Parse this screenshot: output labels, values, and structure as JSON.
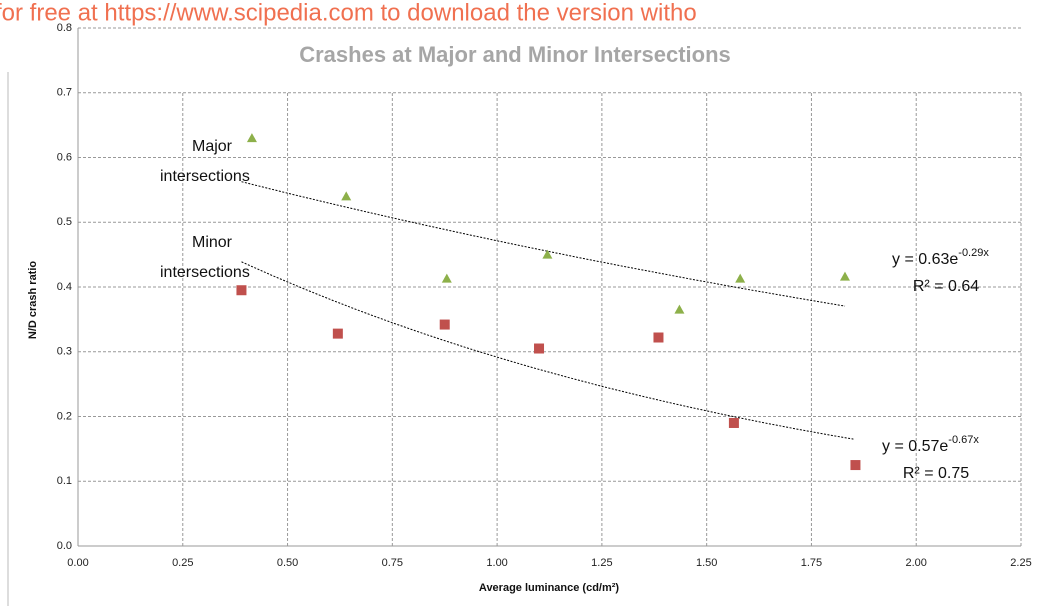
{
  "watermark": "for free at https://www.scipedia.com to download the version witho",
  "chart_data": {
    "type": "scatter",
    "title": "Crashes at Major and Minor Intersections",
    "x_label": "Average luminance (cd/m²)",
    "y_label": "N/D crash ratio",
    "xlim": [
      0,
      2.25
    ],
    "ylim": [
      0,
      0.8
    ],
    "xticks": [
      {
        "value": 0,
        "label": "0.00"
      },
      {
        "value": 0.25,
        "label": "0.25"
      },
      {
        "value": 0.5,
        "label": "0.50"
      },
      {
        "value": 0.75,
        "label": "0.75"
      },
      {
        "value": 1,
        "label": "1.00"
      },
      {
        "value": 1.25,
        "label": "1.25"
      },
      {
        "value": 1.5,
        "label": "1.50"
      },
      {
        "value": 1.75,
        "label": "1.75"
      },
      {
        "value": 2,
        "label": "2.00"
      },
      {
        "value": 2.25,
        "label": "2.25"
      }
    ],
    "yticks": [
      {
        "value": 0,
        "label": "0.0"
      },
      0.1,
      0.2,
      0.3,
      0.4,
      0.5,
      0.6,
      0.7,
      0.8
    ],
    "grid": true,
    "series": [
      {
        "name": "Major intersections",
        "color": "#8db04a",
        "marker": "triangle",
        "x": [
          0.415,
          0.64,
          0.88,
          1.12,
          1.435,
          1.58,
          1.83
        ],
        "values": [
          0.63,
          0.54,
          0.413,
          0.45,
          0.365,
          0.413,
          0.416
        ],
        "trendline": {
          "a": 0.63,
          "b": -0.29,
          "x_range": [
            0.39,
            1.83
          ],
          "equation": "y = 0.63e",
          "exponent": "-0.29x",
          "r2": "R² = 0.64"
        }
      },
      {
        "name": "Minor intersections",
        "color": "#c0504d",
        "marker": "square",
        "x": [
          0.39,
          0.62,
          0.875,
          1.1,
          1.385,
          1.565,
          1.855
        ],
        "values": [
          0.395,
          0.328,
          0.342,
          0.305,
          0.322,
          0.19,
          0.125
        ],
        "trendline": {
          "a": 0.57,
          "b": -0.67,
          "x_range": [
            0.39,
            1.85
          ],
          "equation": "y = 0.57e",
          "exponent": "-0.67x",
          "r2": "R² = 0.75"
        }
      }
    ],
    "annotations": [
      {
        "lines": [
          "Major",
          "intersections"
        ]
      },
      {
        "lines": [
          "Minor",
          "intersections"
        ]
      }
    ]
  }
}
